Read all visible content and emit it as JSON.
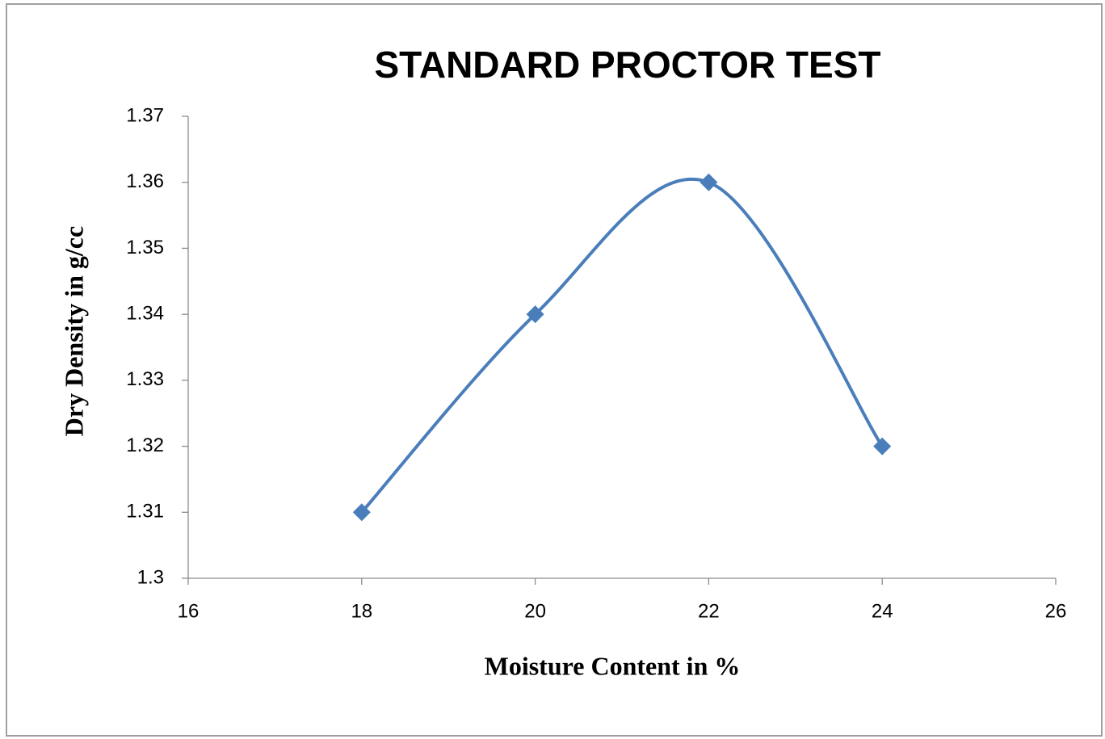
{
  "chart_data": {
    "type": "scatter",
    "smooth": true,
    "title": "STANDARD PROCTOR TEST",
    "x_label": "Moisture Content in %",
    "y_label": "Dry Density in g/cc",
    "x": [
      18,
      20,
      22,
      24
    ],
    "values": [
      1.31,
      1.34,
      1.36,
      1.32
    ],
    "color": "#4a7ebb",
    "xlim": [
      16,
      26
    ],
    "xticks": [
      16,
      18,
      20,
      22,
      24,
      26
    ],
    "ylim": [
      1.3,
      1.37
    ],
    "yticks": [
      1.3,
      1.31,
      1.32,
      1.33,
      1.34,
      1.35,
      1.36,
      1.37
    ],
    "grid": false
  }
}
